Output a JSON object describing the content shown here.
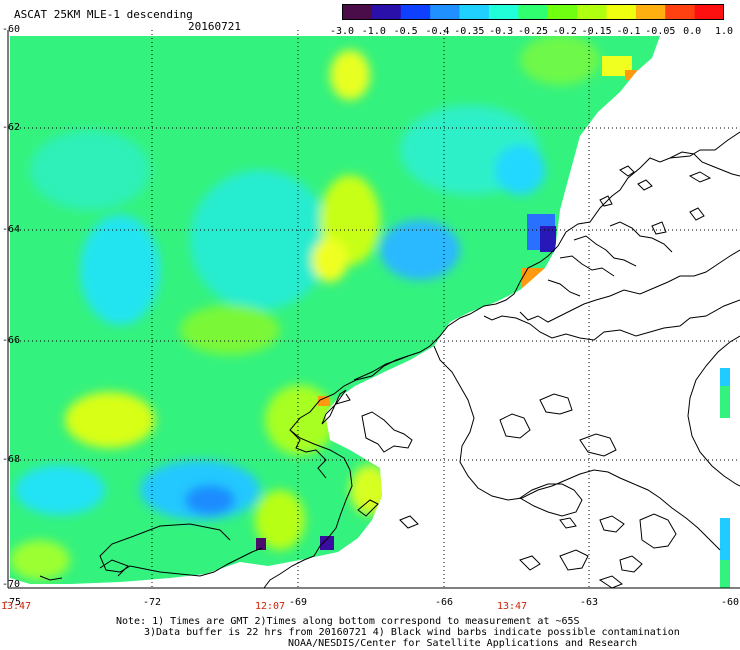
{
  "header": {
    "title": "ASCAT 25KM MLE-1 descending",
    "date": "20160721"
  },
  "colorbar": {
    "labels": [
      "-3.0",
      "-1.0",
      "-0.5",
      "-0.4",
      "-0.35",
      "-0.3",
      "-0.25",
      "-0.2",
      "-0.15",
      "-0.1",
      "-0.05",
      "0.0",
      "1.0"
    ],
    "colors": [
      "#4a0d4a",
      "#2a10a8",
      "#1040ff",
      "#2090ff",
      "#20d0ff",
      "#20ffd8",
      "#30ff70",
      "#70ff10",
      "#b0ff10",
      "#f0ff10",
      "#ffb010",
      "#ff4010",
      "#ff1010"
    ]
  },
  "axes": {
    "lat_labels": [
      "-60",
      "-62",
      "-64",
      "-66",
      "-68",
      "-70"
    ],
    "lon_labels": [
      "-75",
      "-72",
      "-69",
      "-66",
      "-63",
      "-60"
    ]
  },
  "times": [
    "13:47",
    "12:07",
    "13:47"
  ],
  "notes": {
    "line1": "Note: 1) Times are GMT 2)Times along bottom correspond to measurement at ~65S",
    "line2": "3)Data buffer is 22 hrs from 20160721 4) Black wind barbs indicate possible contamination",
    "line3": "NOAA/NESDIS/Center for Satellite Applications and Research"
  }
}
